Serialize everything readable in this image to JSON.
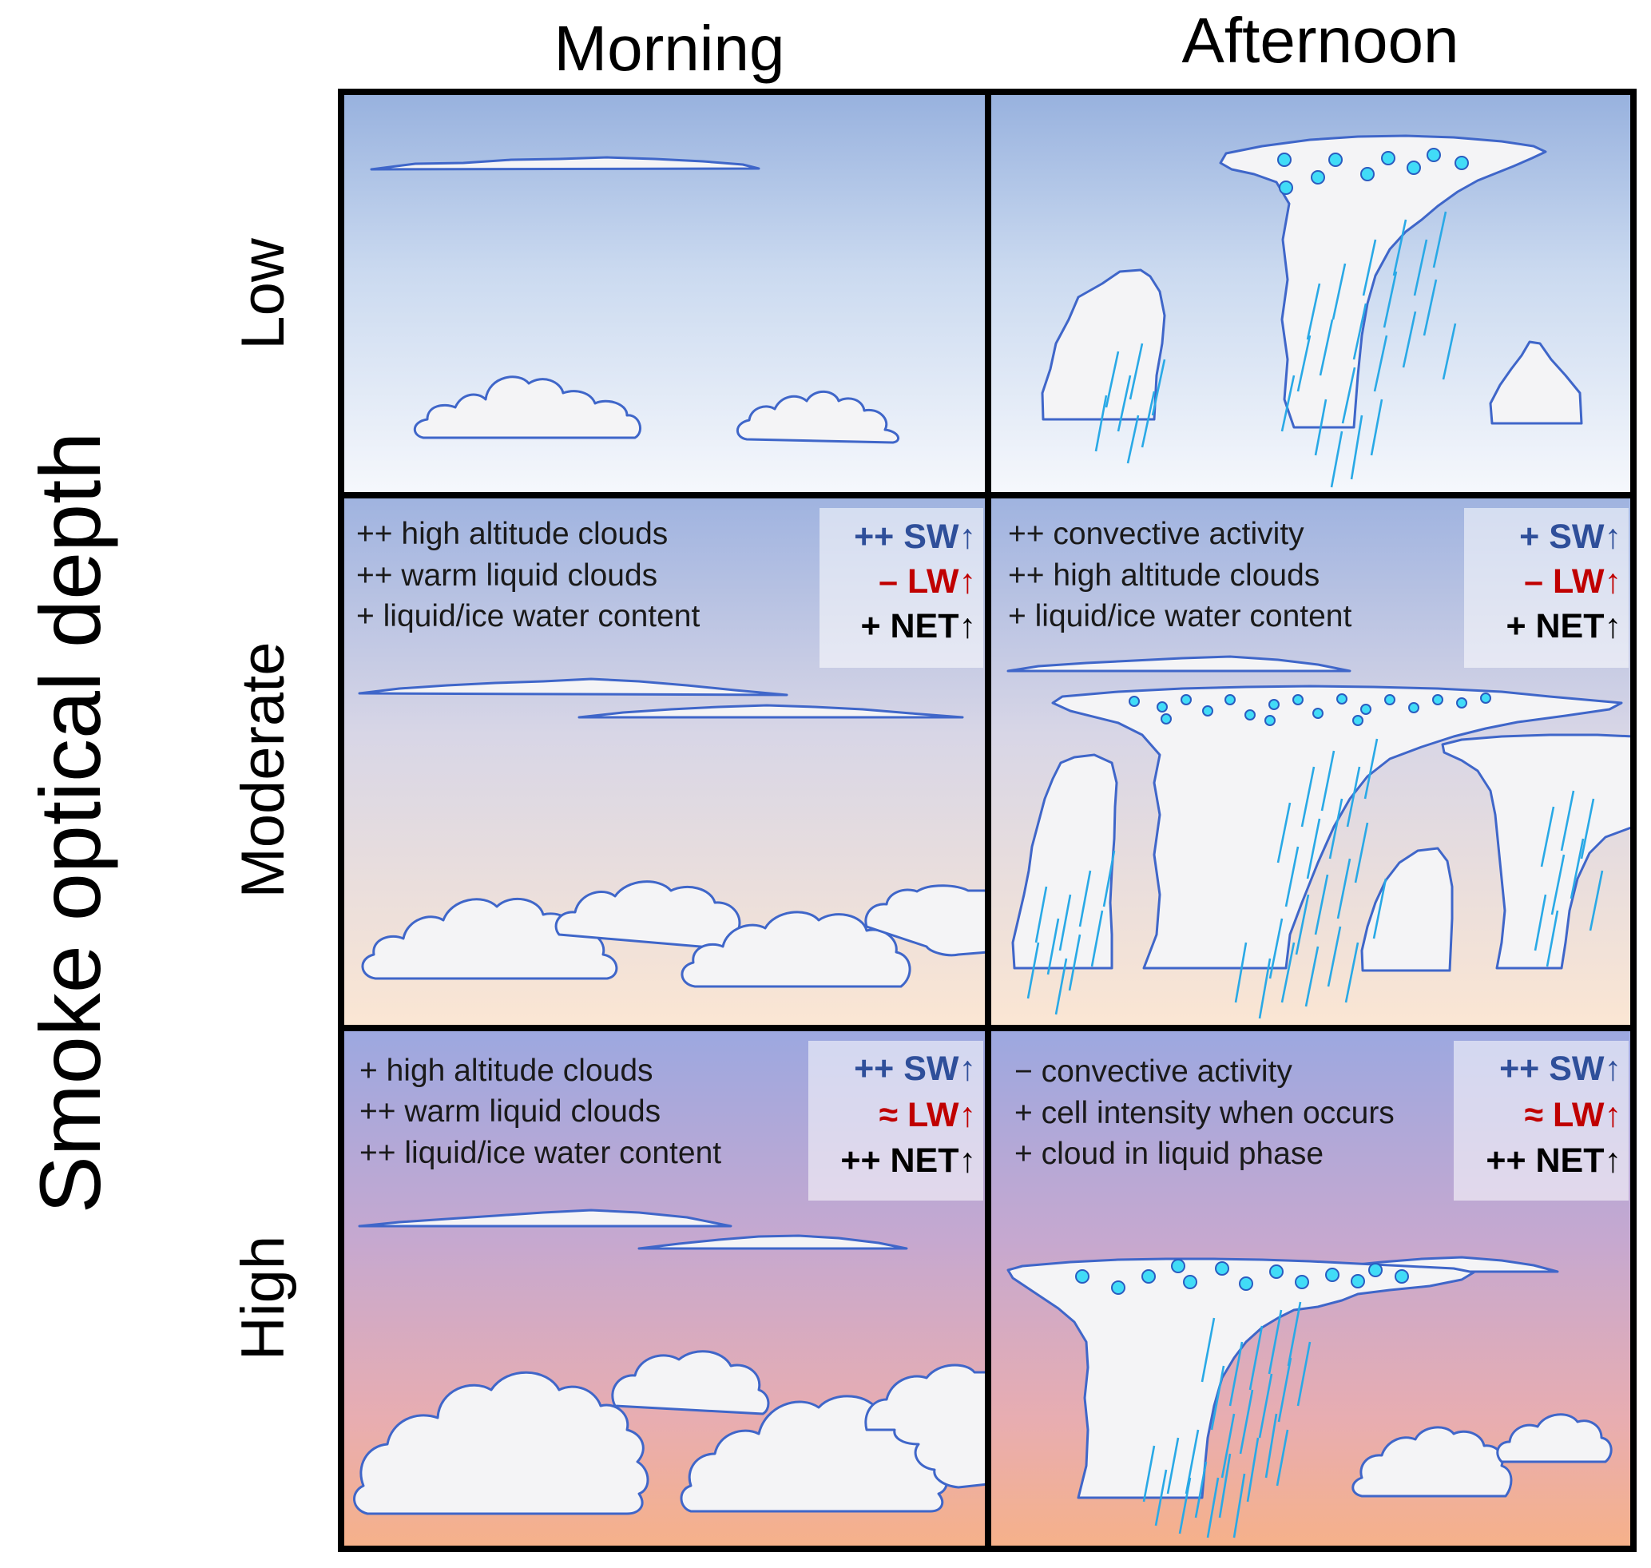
{
  "columns": [
    "Morning",
    "Afternoon"
  ],
  "axis_title": "Smoke optical depth",
  "rows": [
    "Low",
    "Moderate",
    "High"
  ],
  "colors": {
    "sw": "#2f4f9a",
    "lw": "#c00000",
    "net": "#000000",
    "cloud_outline": "#3f66c9",
    "rain": "#29a9e6",
    "ice": "#41dcf7"
  },
  "panels": {
    "moderate_morning": {
      "notes": [
        "++ high altitude clouds",
        "++ warm liquid clouds",
        "+ liquid/ice water content"
      ],
      "sw": "++ SW↑",
      "lw": "– LW↑",
      "net": "+ NET↑"
    },
    "moderate_afternoon": {
      "notes": [
        "++ convective activity",
        "++ high altitude clouds",
        "+ liquid/ice water content"
      ],
      "sw": "+ SW↑",
      "lw": "– LW↑",
      "net": "+ NET↑"
    },
    "high_morning": {
      "notes": [
        "+ high altitude clouds",
        "++ warm liquid clouds",
        "++ liquid/ice water content"
      ],
      "sw": "++ SW↑",
      "lw": "≈ LW↑",
      "net": "++ NET↑"
    },
    "high_afternoon": {
      "notes": [
        "− convective activity",
        "+ cell intensity when occurs",
        "+ cloud in liquid phase"
      ],
      "sw": "++ SW↑",
      "lw": "≈ LW↑",
      "net": "++ NET↑"
    }
  }
}
